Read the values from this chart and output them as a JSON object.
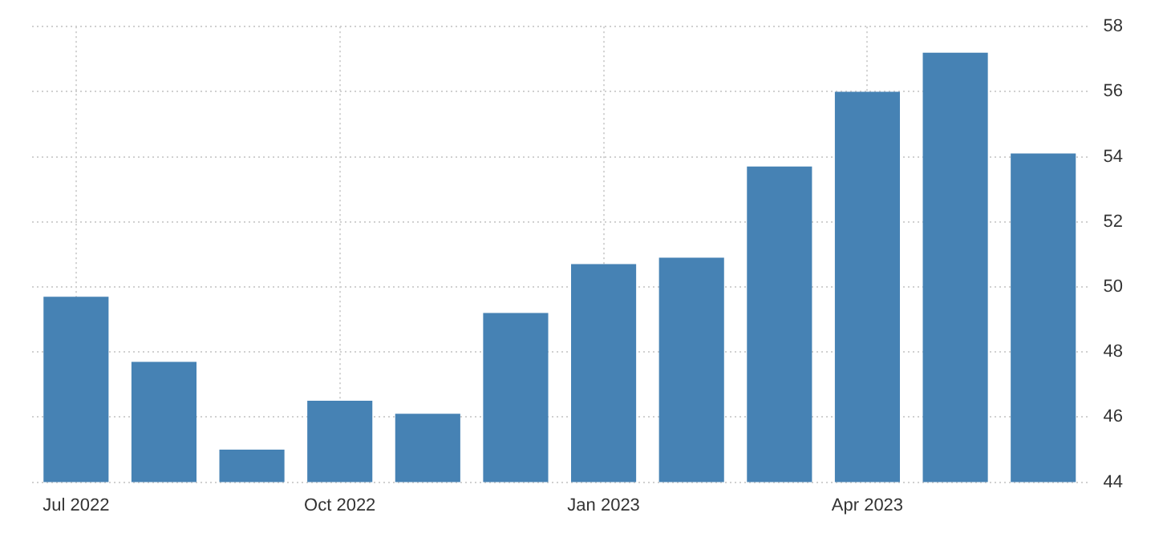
{
  "chart_data": {
    "type": "bar",
    "categories": [
      "Jul 2022",
      null,
      null,
      "Oct 2022",
      null,
      null,
      "Jan 2023",
      null,
      null,
      "Apr 2023",
      null,
      null
    ],
    "values": [
      49.7,
      47.7,
      45.0,
      46.5,
      46.1,
      49.2,
      50.7,
      50.9,
      53.7,
      56.0,
      57.2,
      54.1
    ],
    "color": "#4682b4",
    "ylim": [
      44,
      58
    ],
    "yticks": [
      44,
      46,
      48,
      50,
      52,
      54,
      56,
      58
    ],
    "grid": true,
    "legend": false
  }
}
